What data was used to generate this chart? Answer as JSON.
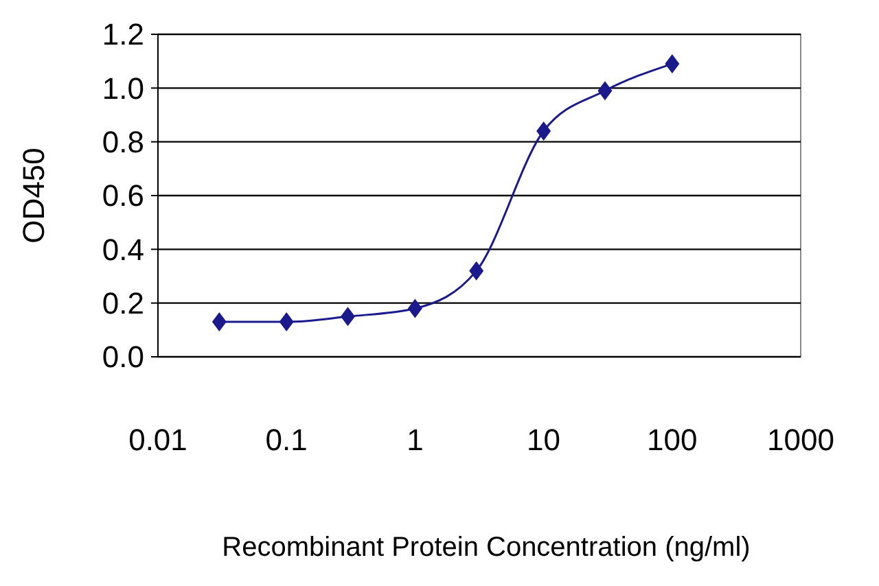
{
  "chart_data": {
    "type": "line",
    "xlabel": "Recombinant Protein Concentration (ng/ml)",
    "ylabel": "OD450",
    "log": "x",
    "x": [
      0.03,
      0.1,
      0.3,
      1,
      3,
      10,
      30,
      100
    ],
    "series": [
      {
        "color": "#1a1a8c",
        "values": [
          0.13,
          0.13,
          0.15,
          0.18,
          0.32,
          0.84,
          0.99,
          1.09
        ]
      }
    ],
    "xlim": [
      0.01,
      1000
    ],
    "xticks": [
      0.01,
      0.1,
      1,
      10,
      100,
      1000
    ],
    "ylim": [
      0,
      1.2
    ],
    "yticks": [
      {
        "value": 0,
        "label": "0.0"
      },
      0.2,
      0.4,
      0.6,
      0.8,
      {
        "value": 1,
        "label": "1.0"
      },
      1.2
    ],
    "grid": "y",
    "marker": "diamond",
    "line_style": "solid"
  }
}
